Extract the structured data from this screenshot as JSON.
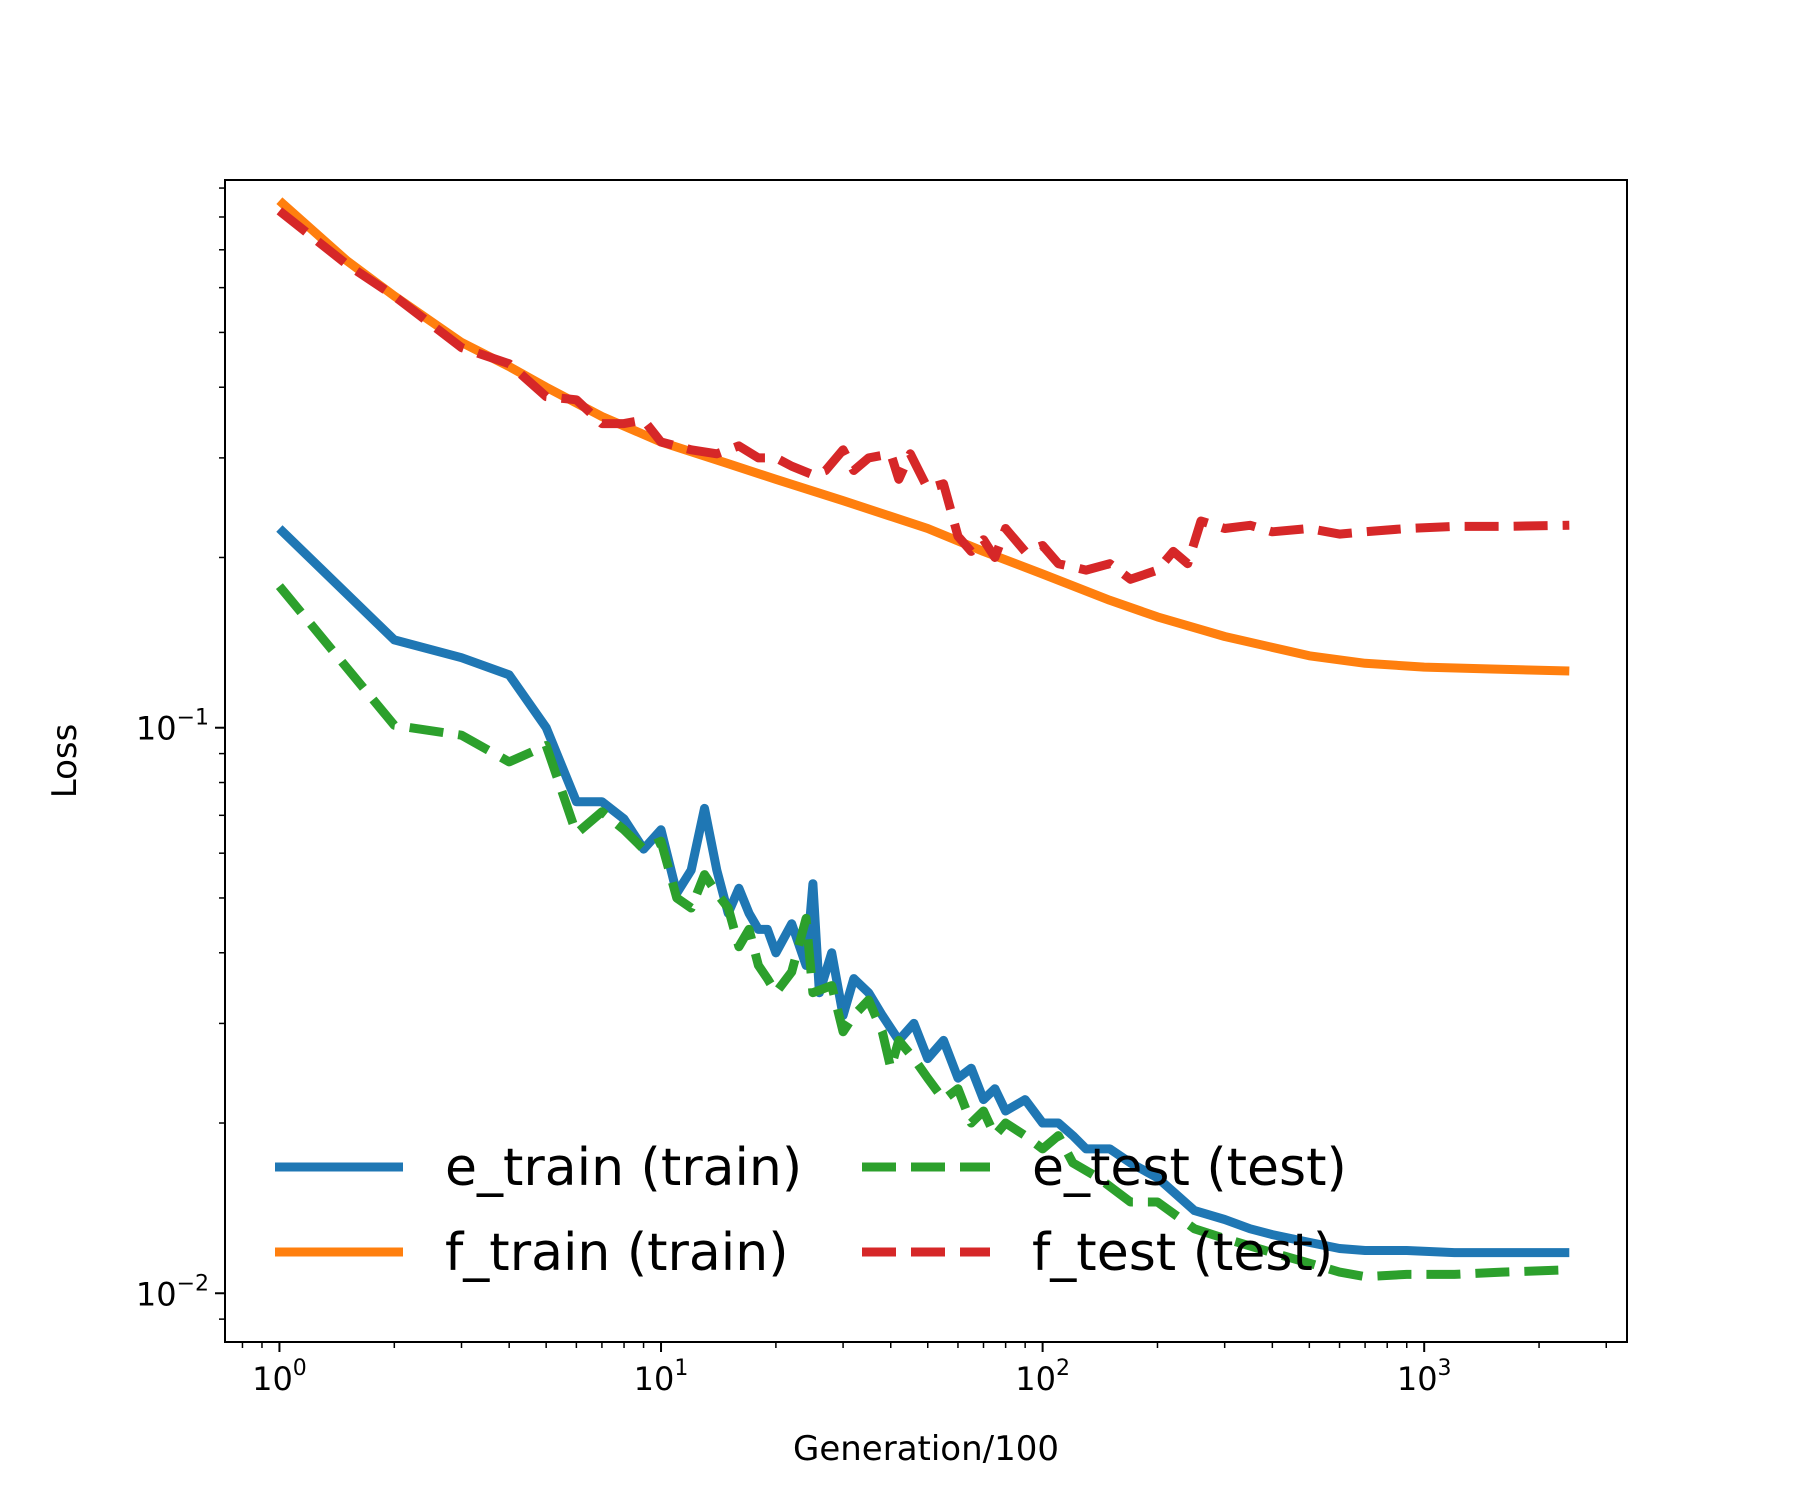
{
  "chart_data": {
    "type": "line",
    "xlabel": "Generation/100",
    "ylabel": "Loss",
    "xscale": "log",
    "yscale": "log",
    "xlim": [
      0.72,
      3400
    ],
    "ylim": [
      0.0082,
      0.93
    ],
    "grid": false,
    "legend_position": "lower center",
    "x_ticks": [
      {
        "value": 1,
        "base": "10",
        "exp": "0"
      },
      {
        "value": 10,
        "base": "10",
        "exp": "1"
      },
      {
        "value": 100,
        "base": "10",
        "exp": "2"
      },
      {
        "value": 1000,
        "base": "10",
        "exp": "3"
      }
    ],
    "y_ticks": [
      {
        "value": 0.1,
        "base": "10",
        "exp": "−1"
      },
      {
        "value": 0.01,
        "base": "10",
        "exp": "−2"
      }
    ],
    "series": [
      {
        "name": "e_train (train)",
        "color": "#1f77b4",
        "dash": "solid",
        "points": [
          [
            1,
            0.225
          ],
          [
            2,
            0.143
          ],
          [
            3,
            0.133
          ],
          [
            4,
            0.124
          ],
          [
            5,
            0.1
          ],
          [
            6,
            0.074
          ],
          [
            7,
            0.074
          ],
          [
            8,
            0.069
          ],
          [
            9,
            0.061
          ],
          [
            10,
            0.066
          ],
          [
            11,
            0.051
          ],
          [
            12,
            0.056
          ],
          [
            13,
            0.072
          ],
          [
            14,
            0.056
          ],
          [
            15,
            0.047
          ],
          [
            16,
            0.052
          ],
          [
            17,
            0.047
          ],
          [
            18,
            0.044
          ],
          [
            19,
            0.044
          ],
          [
            20,
            0.04
          ],
          [
            22,
            0.045
          ],
          [
            24,
            0.038
          ],
          [
            25,
            0.053
          ],
          [
            26,
            0.034
          ],
          [
            28,
            0.04
          ],
          [
            30,
            0.031
          ],
          [
            32,
            0.036
          ],
          [
            35,
            0.034
          ],
          [
            38,
            0.031
          ],
          [
            42,
            0.028
          ],
          [
            46,
            0.03
          ],
          [
            50,
            0.026
          ],
          [
            55,
            0.028
          ],
          [
            60,
            0.024
          ],
          [
            65,
            0.025
          ],
          [
            70,
            0.022
          ],
          [
            75,
            0.023
          ],
          [
            80,
            0.021
          ],
          [
            90,
            0.022
          ],
          [
            100,
            0.02
          ],
          [
            110,
            0.02
          ],
          [
            120,
            0.019
          ],
          [
            130,
            0.018
          ],
          [
            150,
            0.018
          ],
          [
            170,
            0.017
          ],
          [
            200,
            0.016
          ],
          [
            250,
            0.014
          ],
          [
            300,
            0.0135
          ],
          [
            350,
            0.013
          ],
          [
            400,
            0.0127
          ],
          [
            500,
            0.0123
          ],
          [
            600,
            0.012
          ],
          [
            700,
            0.0119
          ],
          [
            900,
            0.0119
          ],
          [
            1200,
            0.0118
          ],
          [
            1600,
            0.0118
          ],
          [
            2400,
            0.0118
          ]
        ]
      },
      {
        "name": "f_train (train)",
        "color": "#ff7f0e",
        "dash": "solid",
        "points": [
          [
            1,
            0.855
          ],
          [
            1.5,
            0.67
          ],
          [
            2,
            0.58
          ],
          [
            3,
            0.48
          ],
          [
            4,
            0.435
          ],
          [
            5,
            0.4
          ],
          [
            7,
            0.355
          ],
          [
            10,
            0.32
          ],
          [
            15,
            0.293
          ],
          [
            20,
            0.275
          ],
          [
            30,
            0.252
          ],
          [
            50,
            0.225
          ],
          [
            70,
            0.205
          ],
          [
            100,
            0.187
          ],
          [
            150,
            0.168
          ],
          [
            200,
            0.157
          ],
          [
            300,
            0.145
          ],
          [
            500,
            0.134
          ],
          [
            700,
            0.13
          ],
          [
            1000,
            0.128
          ],
          [
            1500,
            0.127
          ],
          [
            2400,
            0.126
          ]
        ]
      },
      {
        "name": "e_test (test)",
        "color": "#2ca02c",
        "dash": "dashed",
        "points": [
          [
            1,
            0.178
          ],
          [
            2,
            0.101
          ],
          [
            3,
            0.097
          ],
          [
            4,
            0.087
          ],
          [
            5,
            0.093
          ],
          [
            6,
            0.065
          ],
          [
            7,
            0.071
          ],
          [
            8,
            0.066
          ],
          [
            9,
            0.061
          ],
          [
            10,
            0.063
          ],
          [
            11,
            0.05
          ],
          [
            12,
            0.048
          ],
          [
            13,
            0.055
          ],
          [
            14,
            0.051
          ],
          [
            15,
            0.048
          ],
          [
            16,
            0.041
          ],
          [
            17,
            0.044
          ],
          [
            18,
            0.038
          ],
          [
            19,
            0.036
          ],
          [
            20,
            0.034
          ],
          [
            22,
            0.037
          ],
          [
            24,
            0.046
          ],
          [
            25,
            0.034
          ],
          [
            28,
            0.035
          ],
          [
            30,
            0.029
          ],
          [
            32,
            0.031
          ],
          [
            35,
            0.033
          ],
          [
            38,
            0.029
          ],
          [
            40,
            0.025
          ],
          [
            42,
            0.028
          ],
          [
            46,
            0.026
          ],
          [
            50,
            0.024
          ],
          [
            55,
            0.022
          ],
          [
            60,
            0.023
          ],
          [
            65,
            0.02
          ],
          [
            70,
            0.021
          ],
          [
            75,
            0.019
          ],
          [
            80,
            0.02
          ],
          [
            90,
            0.019
          ],
          [
            100,
            0.018
          ],
          [
            110,
            0.019
          ],
          [
            120,
            0.017
          ],
          [
            140,
            0.016
          ],
          [
            170,
            0.0145
          ],
          [
            200,
            0.0145
          ],
          [
            250,
            0.013
          ],
          [
            300,
            0.0125
          ],
          [
            400,
            0.0118
          ],
          [
            500,
            0.0113
          ],
          [
            600,
            0.0109
          ],
          [
            700,
            0.0107
          ],
          [
            900,
            0.0108
          ],
          [
            1200,
            0.0108
          ],
          [
            1600,
            0.0109
          ],
          [
            2400,
            0.011
          ]
        ]
      },
      {
        "name": "f_test (test)",
        "color": "#d62728",
        "dash": "dashed",
        "points": [
          [
            1,
            0.82
          ],
          [
            1.5,
            0.66
          ],
          [
            2,
            0.58
          ],
          [
            3,
            0.47
          ],
          [
            4,
            0.44
          ],
          [
            5,
            0.385
          ],
          [
            6,
            0.38
          ],
          [
            7,
            0.345
          ],
          [
            8,
            0.345
          ],
          [
            9,
            0.35
          ],
          [
            10,
            0.32
          ],
          [
            12,
            0.31
          ],
          [
            14,
            0.305
          ],
          [
            16,
            0.315
          ],
          [
            18,
            0.3
          ],
          [
            20,
            0.3
          ],
          [
            22,
            0.29
          ],
          [
            25,
            0.28
          ],
          [
            27,
            0.285
          ],
          [
            30,
            0.31
          ],
          [
            32,
            0.285
          ],
          [
            35,
            0.3
          ],
          [
            40,
            0.305
          ],
          [
            42,
            0.275
          ],
          [
            45,
            0.305
          ],
          [
            50,
            0.265
          ],
          [
            55,
            0.27
          ],
          [
            60,
            0.218
          ],
          [
            65,
            0.205
          ],
          [
            70,
            0.215
          ],
          [
            75,
            0.2
          ],
          [
            80,
            0.225
          ],
          [
            90,
            0.205
          ],
          [
            100,
            0.21
          ],
          [
            110,
            0.195
          ],
          [
            130,
            0.19
          ],
          [
            150,
            0.195
          ],
          [
            170,
            0.183
          ],
          [
            200,
            0.19
          ],
          [
            220,
            0.205
          ],
          [
            240,
            0.195
          ],
          [
            260,
            0.232
          ],
          [
            300,
            0.225
          ],
          [
            350,
            0.228
          ],
          [
            400,
            0.222
          ],
          [
            500,
            0.225
          ],
          [
            600,
            0.22
          ],
          [
            700,
            0.222
          ],
          [
            900,
            0.225
          ],
          [
            1200,
            0.227
          ],
          [
            1600,
            0.227
          ],
          [
            2400,
            0.228
          ]
        ]
      }
    ]
  }
}
